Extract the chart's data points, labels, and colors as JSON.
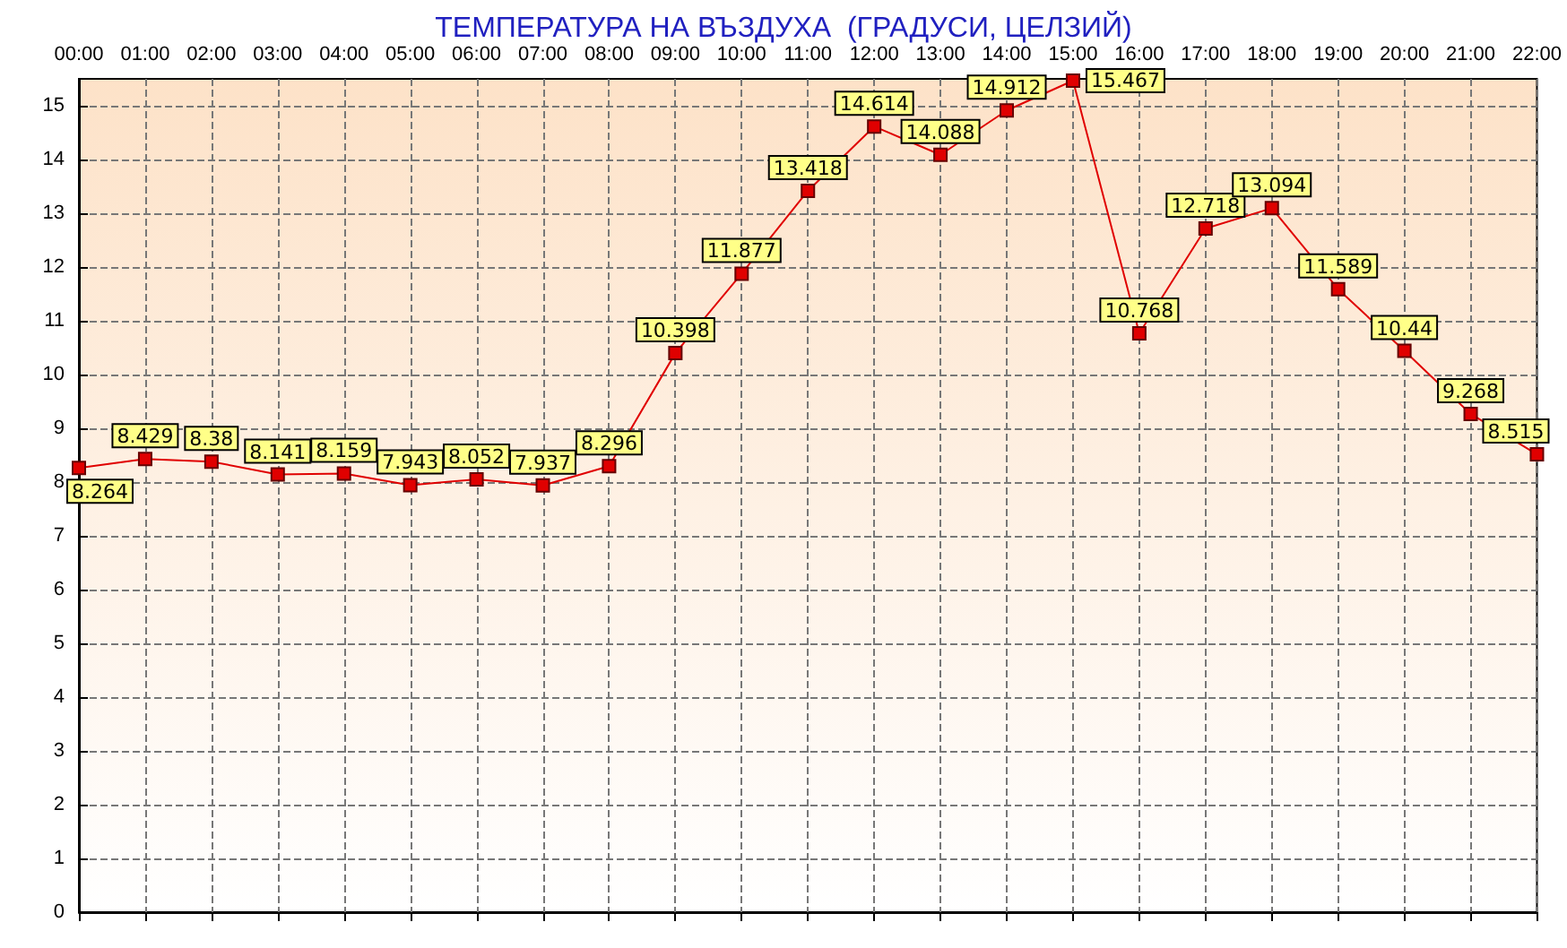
{
  "chart_data": {
    "type": "line",
    "title": "ТЕМПЕРАТУРА НА ВЪЗДУХА  (ГРАДУСИ, ЦЕЛЗИЙ)",
    "categories": [
      "00:00",
      "01:00",
      "02:00",
      "03:00",
      "04:00",
      "05:00",
      "06:00",
      "07:00",
      "08:00",
      "09:00",
      "10:00",
      "11:00",
      "12:00",
      "13:00",
      "14:00",
      "15:00",
      "16:00",
      "17:00",
      "18:00",
      "19:00",
      "20:00",
      "21:00",
      "22:00"
    ],
    "series": [
      {
        "color": "#e00000",
        "values": [
          8.264,
          8.429,
          8.38,
          8.141,
          8.159,
          7.943,
          8.052,
          7.937,
          8.296,
          10.398,
          11.877,
          13.418,
          14.614,
          14.088,
          14.912,
          15.467,
          10.768,
          12.718,
          13.094,
          11.589,
          10.44,
          9.268,
          8.515
        ]
      }
    ],
    "ylim": [
      0,
      15.5
    ],
    "yticks": [
      0,
      1,
      2,
      3,
      4,
      5,
      6,
      7,
      8,
      9,
      10,
      11,
      12,
      13,
      14,
      15
    ],
    "grid": true,
    "marker": "square",
    "line_style": "solid",
    "data_labels": true
  }
}
